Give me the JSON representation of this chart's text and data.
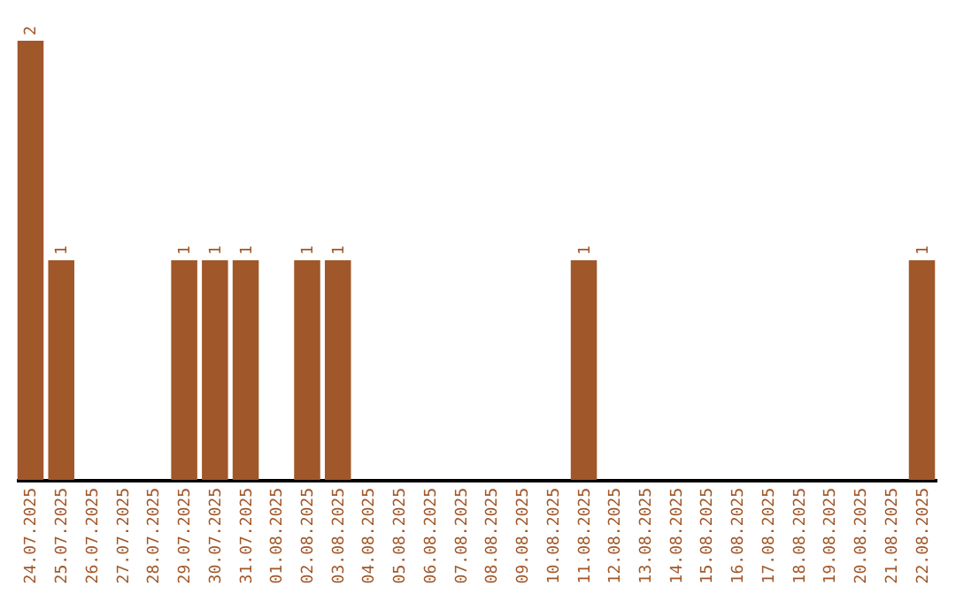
{
  "chart_data": {
    "type": "bar",
    "categories": [
      "24.07.2025",
      "25.07.2025",
      "26.07.2025",
      "27.07.2025",
      "28.07.2025",
      "29.07.2025",
      "30.07.2025",
      "31.07.2025",
      "01.08.2025",
      "02.08.2025",
      "03.08.2025",
      "04.08.2025",
      "05.08.2025",
      "06.08.2025",
      "07.08.2025",
      "08.08.2025",
      "09.08.2025",
      "10.08.2025",
      "11.08.2025",
      "12.08.2025",
      "13.08.2025",
      "14.08.2025",
      "15.08.2025",
      "16.08.2025",
      "17.08.2025",
      "18.08.2025",
      "19.08.2025",
      "20.08.2025",
      "21.08.2025",
      "22.08.2025"
    ],
    "values": [
      2,
      1,
      0,
      0,
      0,
      1,
      1,
      1,
      0,
      1,
      1,
      0,
      0,
      0,
      0,
      0,
      0,
      0,
      1,
      0,
      0,
      0,
      0,
      0,
      0,
      0,
      0,
      0,
      0,
      1
    ],
    "value_labels": [
      "2",
      "1",
      null,
      null,
      null,
      "1",
      "1",
      "1",
      null,
      "1",
      "1",
      null,
      null,
      null,
      null,
      null,
      null,
      null,
      "1",
      null,
      null,
      null,
      null,
      null,
      null,
      null,
      null,
      null,
      null,
      "1"
    ],
    "color": "#a0582a",
    "grid": false
  }
}
